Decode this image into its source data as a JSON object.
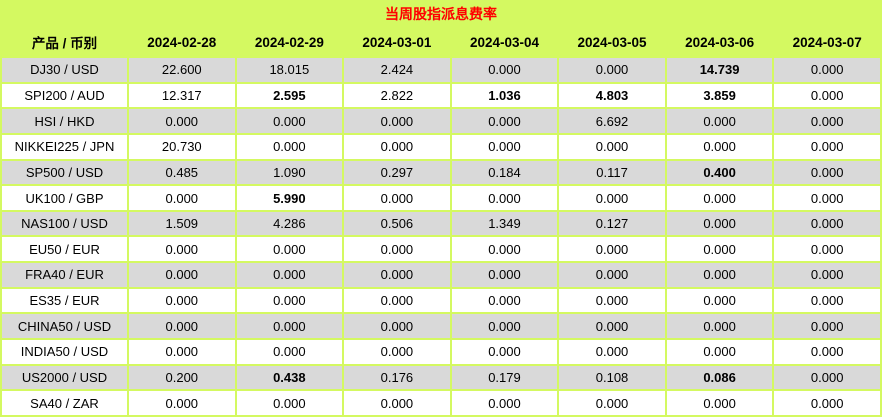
{
  "title": "当周股指派息费率",
  "columns": [
    "产品 / 币别",
    "2024-02-28",
    "2024-02-29",
    "2024-03-01",
    "2024-03-04",
    "2024-03-05",
    "2024-03-06",
    "2024-03-07"
  ],
  "rows": [
    {
      "product": "DJ30 / USD",
      "values": [
        "22.600",
        "18.015",
        "2.424",
        "0.000",
        "0.000",
        "14.739",
        "0.000"
      ],
      "bold": [
        false,
        false,
        false,
        false,
        false,
        true,
        false
      ]
    },
    {
      "product": "SPI200 / AUD",
      "values": [
        "12.317",
        "2.595",
        "2.822",
        "1.036",
        "4.803",
        "3.859",
        "0.000"
      ],
      "bold": [
        false,
        true,
        false,
        true,
        true,
        true,
        false
      ]
    },
    {
      "product": "HSI / HKD",
      "values": [
        "0.000",
        "0.000",
        "0.000",
        "0.000",
        "6.692",
        "0.000",
        "0.000"
      ],
      "bold": [
        false,
        false,
        false,
        false,
        false,
        false,
        false
      ]
    },
    {
      "product": "NIKKEI225 / JPN",
      "values": [
        "20.730",
        "0.000",
        "0.000",
        "0.000",
        "0.000",
        "0.000",
        "0.000"
      ],
      "bold": [
        false,
        false,
        false,
        false,
        false,
        false,
        false
      ]
    },
    {
      "product": "SP500 / USD",
      "values": [
        "0.485",
        "1.090",
        "0.297",
        "0.184",
        "0.117",
        "0.400",
        "0.000"
      ],
      "bold": [
        false,
        false,
        false,
        false,
        false,
        true,
        false
      ]
    },
    {
      "product": "UK100 / GBP",
      "values": [
        "0.000",
        "5.990",
        "0.000",
        "0.000",
        "0.000",
        "0.000",
        "0.000"
      ],
      "bold": [
        false,
        true,
        false,
        false,
        false,
        false,
        false
      ]
    },
    {
      "product": "NAS100 / USD",
      "values": [
        "1.509",
        "4.286",
        "0.506",
        "1.349",
        "0.127",
        "0.000",
        "0.000"
      ],
      "bold": [
        false,
        false,
        false,
        false,
        false,
        false,
        false
      ]
    },
    {
      "product": "EU50 / EUR",
      "values": [
        "0.000",
        "0.000",
        "0.000",
        "0.000",
        "0.000",
        "0.000",
        "0.000"
      ],
      "bold": [
        false,
        false,
        false,
        false,
        false,
        false,
        false
      ]
    },
    {
      "product": "FRA40 / EUR",
      "values": [
        "0.000",
        "0.000",
        "0.000",
        "0.000",
        "0.000",
        "0.000",
        "0.000"
      ],
      "bold": [
        false,
        false,
        false,
        false,
        false,
        false,
        false
      ]
    },
    {
      "product": "ES35 / EUR",
      "values": [
        "0.000",
        "0.000",
        "0.000",
        "0.000",
        "0.000",
        "0.000",
        "0.000"
      ],
      "bold": [
        false,
        false,
        false,
        false,
        false,
        false,
        false
      ]
    },
    {
      "product": "CHINA50 / USD",
      "values": [
        "0.000",
        "0.000",
        "0.000",
        "0.000",
        "0.000",
        "0.000",
        "0.000"
      ],
      "bold": [
        false,
        false,
        false,
        false,
        false,
        false,
        false
      ]
    },
    {
      "product": "INDIA50 / USD",
      "values": [
        "0.000",
        "0.000",
        "0.000",
        "0.000",
        "0.000",
        "0.000",
        "0.000"
      ],
      "bold": [
        false,
        false,
        false,
        false,
        false,
        false,
        false
      ]
    },
    {
      "product": "US2000 / USD",
      "values": [
        "0.200",
        "0.438",
        "0.176",
        "0.179",
        "0.108",
        "0.086",
        "0.000"
      ],
      "bold": [
        false,
        true,
        false,
        false,
        false,
        true,
        false
      ]
    },
    {
      "product": "SA40 / ZAR",
      "values": [
        "0.000",
        "0.000",
        "0.000",
        "0.000",
        "0.000",
        "0.000",
        "0.000"
      ],
      "bold": [
        false,
        false,
        false,
        false,
        false,
        false,
        false
      ]
    }
  ],
  "colors": {
    "accent_green": "#d4f961",
    "title_red": "#ff0000",
    "row_gray": "#d9d9d9",
    "row_white": "#ffffff",
    "text_black": "#000000"
  }
}
